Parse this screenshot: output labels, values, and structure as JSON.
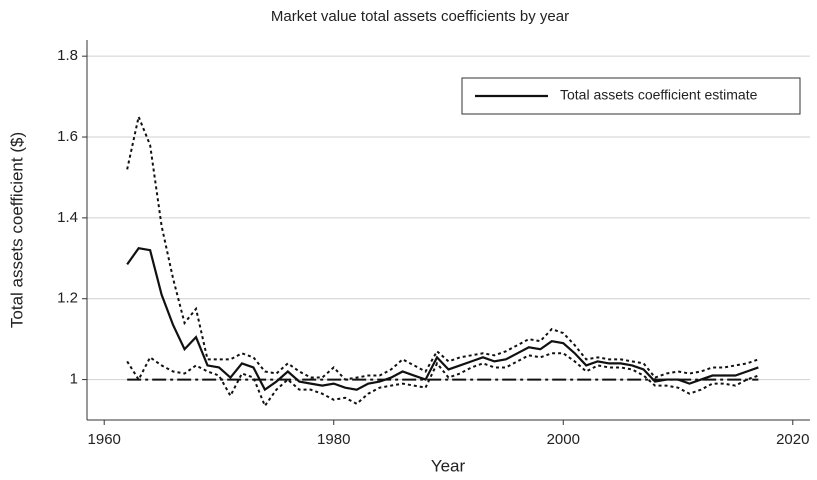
{
  "chart_data": {
    "type": "line",
    "title": "Market value total assets coefficients by year",
    "x_label": "Year",
    "y_label": "Total assets coefficient ($)",
    "x": [
      1962,
      1963,
      1964,
      1965,
      1966,
      1967,
      1968,
      1969,
      1970,
      1971,
      1972,
      1973,
      1974,
      1975,
      1976,
      1977,
      1978,
      1979,
      1980,
      1981,
      1982,
      1983,
      1984,
      1985,
      1986,
      1987,
      1988,
      1989,
      1990,
      1991,
      1992,
      1993,
      1994,
      1995,
      1996,
      1997,
      1998,
      1999,
      2000,
      2001,
      2002,
      2003,
      2004,
      2005,
      2006,
      2007,
      2008,
      2009,
      2010,
      2011,
      2012,
      2013,
      2014,
      2015,
      2016,
      2017
    ],
    "series": [
      {
        "name": "Total assets coefficient estimate",
        "color": "#111111",
        "dash": "solid",
        "values": [
          1.285,
          1.325,
          1.32,
          1.21,
          1.135,
          1.075,
          1.105,
          1.035,
          1.03,
          1.005,
          1.04,
          1.03,
          0.975,
          0.995,
          1.02,
          0.995,
          0.99,
          0.985,
          0.99,
          0.98,
          0.975,
          0.99,
          0.995,
          1.005,
          1.02,
          1.01,
          1.0,
          1.055,
          1.025,
          1.035,
          1.045,
          1.055,
          1.045,
          1.05,
          1.065,
          1.08,
          1.075,
          1.095,
          1.09,
          1.065,
          1.035,
          1.045,
          1.04,
          1.04,
          1.035,
          1.025,
          0.995,
          1.0,
          1.0,
          0.99,
          1.0,
          1.01,
          1.01,
          1.01,
          1.02,
          1.03
        ]
      },
      {
        "color": "#111111",
        "dash": "dot",
        "values": [
          1.52,
          1.65,
          1.58,
          1.38,
          1.25,
          1.14,
          1.175,
          1.05,
          1.05,
          1.05,
          1.065,
          1.055,
          1.02,
          1.015,
          1.04,
          1.02,
          1.005,
          1.005,
          1.03,
          1.0,
          1.005,
          1.01,
          1.01,
          1.025,
          1.05,
          1.035,
          1.02,
          1.07,
          1.045,
          1.055,
          1.06,
          1.065,
          1.06,
          1.07,
          1.085,
          1.1,
          1.095,
          1.125,
          1.115,
          1.085,
          1.05,
          1.055,
          1.05,
          1.05,
          1.045,
          1.04,
          1.005,
          1.015,
          1.02,
          1.015,
          1.02,
          1.03,
          1.03,
          1.035,
          1.04,
          1.05
        ]
      },
      {
        "color": "#111111",
        "dash": "dot",
        "values": [
          1.045,
          1.0,
          1.055,
          1.035,
          1.02,
          1.015,
          1.035,
          1.02,
          1.01,
          0.96,
          1.015,
          1.005,
          0.935,
          0.975,
          1.0,
          0.975,
          0.975,
          0.965,
          0.95,
          0.955,
          0.94,
          0.965,
          0.98,
          0.985,
          0.99,
          0.985,
          0.98,
          1.04,
          1.005,
          1.015,
          1.03,
          1.04,
          1.03,
          1.03,
          1.045,
          1.06,
          1.055,
          1.065,
          1.065,
          1.045,
          1.02,
          1.035,
          1.03,
          1.03,
          1.025,
          1.01,
          0.985,
          0.985,
          0.98,
          0.965,
          0.975,
          0.99,
          0.99,
          0.985,
          1.0,
          1.01
        ]
      },
      {
        "color": "#111111",
        "dash": "dashdot",
        "values": [
          1,
          1,
          1,
          1,
          1,
          1,
          1,
          1,
          1,
          1,
          1,
          1,
          1,
          1,
          1,
          1,
          1,
          1,
          1,
          1,
          1,
          1,
          1,
          1,
          1,
          1,
          1,
          1,
          1,
          1,
          1,
          1,
          1,
          1,
          1,
          1,
          1,
          1,
          1,
          1,
          1,
          1,
          1,
          1,
          1,
          1,
          1,
          1,
          1,
          1,
          1,
          1,
          1,
          1,
          1,
          1
        ]
      }
    ],
    "xlim": [
      1958.5,
      2021.5
    ],
    "xticks": [
      1960,
      1980,
      2000,
      2020
    ],
    "ylim": [
      0.9,
      1.84
    ],
    "yticks": [
      1,
      1.2,
      1.4,
      1.6,
      1.8
    ],
    "grid": true,
    "legend": "upper right"
  }
}
